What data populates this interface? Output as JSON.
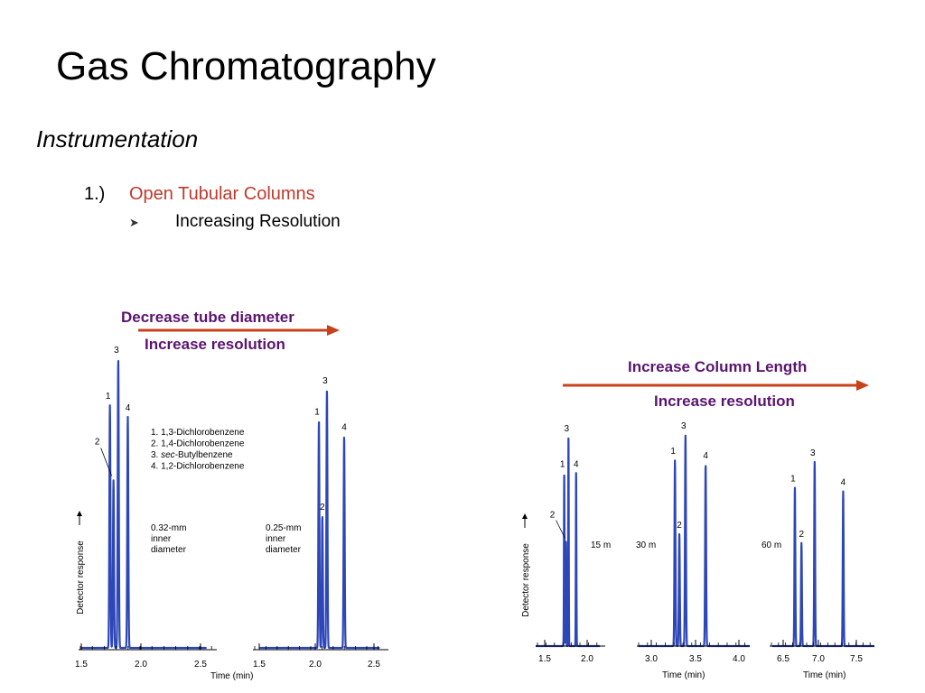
{
  "slide": {
    "title": "Gas Chromatography",
    "section": "Instrumentation",
    "item_number": "1.)",
    "item_text": "Open Tubular Columns",
    "bullet_text": "Increasing Resolution"
  },
  "annotations": {
    "left_line1": "Decrease tube diameter",
    "left_line2": "Increase resolution",
    "right_line1": "Increase Column Length",
    "right_line2": "Increase resolution"
  },
  "colors": {
    "trace": "#2d46b8",
    "arrow": "#c8411b",
    "annotation": "#5b1370",
    "item_text": "#c0392b"
  },
  "legend": [
    "1. 1,3-Dichlorobenzene",
    "2. 1,4-Dichlorobenzene",
    "3. sec-Butylbenzene",
    "4. 1,2-Dichlorobenzene"
  ],
  "chart_data": [
    {
      "type": "line",
      "ylabel": "Detector response",
      "xlabel": "",
      "xticks": [
        "1.5",
        "2.0",
        "2.5"
      ],
      "xlim": [
        1.5,
        2.55
      ],
      "ylim": [
        0,
        1
      ],
      "condition": [
        "0.32-mm",
        "inner",
        "diameter"
      ],
      "peaks": [
        {
          "label": "1",
          "x": 1.74,
          "height": 0.84
        },
        {
          "label": "2",
          "x": 1.77,
          "height": 0.58
        },
        {
          "label": "3",
          "x": 1.81,
          "height": 1.0
        },
        {
          "label": "4",
          "x": 1.89,
          "height": 0.8
        }
      ]
    },
    {
      "type": "line",
      "xlabel": "Time (min)",
      "xticks": [
        "1.5",
        "2.0",
        "2.5"
      ],
      "xlim": [
        1.5,
        2.55
      ],
      "ylim": [
        0,
        1
      ],
      "condition": [
        "0.25-mm",
        "inner",
        "diameter"
      ],
      "peaks": [
        {
          "label": "1",
          "x": 2.02,
          "height": 0.88
        },
        {
          "label": "2",
          "x": 2.05,
          "height": 0.51
        },
        {
          "label": "3",
          "x": 2.09,
          "height": 1.0
        },
        {
          "label": "4",
          "x": 2.24,
          "height": 0.82
        }
      ]
    },
    {
      "type": "line",
      "ylabel": "Detector response",
      "xlabel": "",
      "xticks": [
        "1.5",
        "2.0"
      ],
      "xlim": [
        1.35,
        2.15
      ],
      "ylim": [
        0,
        1
      ],
      "condition": [
        "15 m"
      ],
      "peaks": [
        {
          "label": "1",
          "x": 1.73,
          "height": 0.83
        },
        {
          "label": "2",
          "x": 1.75,
          "height": 0.5
        },
        {
          "label": "3",
          "x": 1.78,
          "height": 1.0
        },
        {
          "label": "4",
          "x": 1.87,
          "height": 0.83
        }
      ]
    },
    {
      "type": "line",
      "xlabel": "Time (min)",
      "xticks": [
        "3.0",
        "3.5",
        "4.0"
      ],
      "xlim": [
        2.85,
        4.15
      ],
      "ylim": [
        0,
        1
      ],
      "condition": [
        "30 m"
      ],
      "peaks": [
        {
          "label": "1",
          "x": 3.27,
          "height": 0.88
        },
        {
          "label": "2",
          "x": 3.32,
          "height": 0.53
        },
        {
          "label": "3",
          "x": 3.39,
          "height": 1.0
        },
        {
          "label": "4",
          "x": 3.62,
          "height": 0.86
        }
      ]
    },
    {
      "type": "line",
      "xlabel": "Time (min)",
      "xticks": [
        "6.5",
        "7.0",
        "7.5"
      ],
      "xlim": [
        6.35,
        7.75
      ],
      "ylim": [
        0,
        1
      ],
      "condition": [
        "60 m"
      ],
      "peaks": [
        {
          "label": "1",
          "x": 6.66,
          "height": 0.86
        },
        {
          "label": "2",
          "x": 6.75,
          "height": 0.56
        },
        {
          "label": "3",
          "x": 6.93,
          "height": 1.0
        },
        {
          "label": "4",
          "x": 7.32,
          "height": 0.84
        }
      ]
    }
  ]
}
